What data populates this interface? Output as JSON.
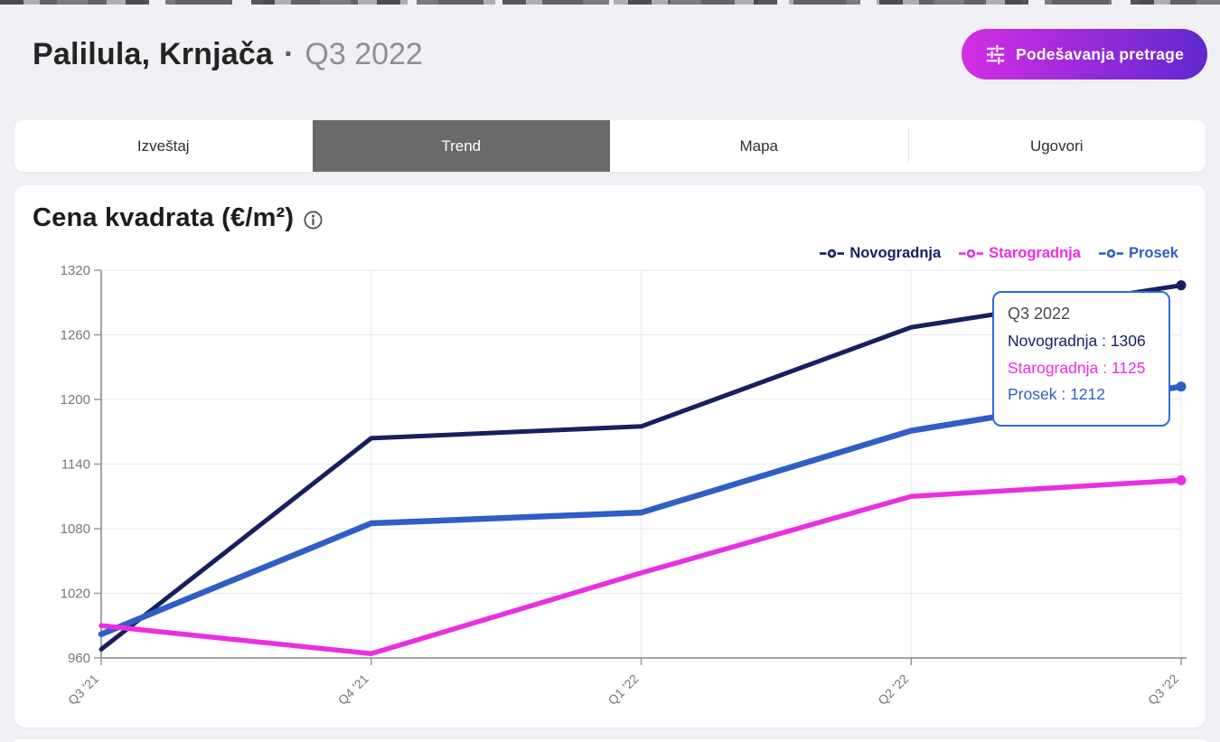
{
  "header": {
    "title": "Palilula, Krnjača",
    "separator": "·",
    "period": "Q3 2022",
    "settings_button": {
      "label": "Podešavanja pretrage",
      "icon": "sliders-icon",
      "gradient_from": "#d32ee4",
      "gradient_to": "#6028d0"
    }
  },
  "tabs": [
    {
      "label": "Izveštaj",
      "active": false
    },
    {
      "label": "Trend",
      "active": true
    },
    {
      "label": "Mapa",
      "active": false
    },
    {
      "label": "Ugovori",
      "active": false
    }
  ],
  "chart_card": {
    "title": "Cena kvadrata (€/m²)",
    "info_icon": "info-icon"
  },
  "chart_data": {
    "type": "line",
    "title": "Cena kvadrata (€/m²)",
    "categories": [
      "Q3 '21",
      "Q4 '21",
      "Q1 '22",
      "Q2 '22",
      "Q3 '22"
    ],
    "series": [
      {
        "name": "Novogradnja",
        "color": "#181e60",
        "values": [
          968,
          1164,
          1175,
          1267,
          1306
        ]
      },
      {
        "name": "Starogradnja",
        "color": "#e92fe1",
        "values": [
          990,
          964,
          1039,
          1110,
          1125
        ]
      },
      {
        "name": "Prosek",
        "color": "#2e5ec6",
        "values": [
          982,
          1085,
          1095,
          1171,
          1212
        ]
      }
    ],
    "ylim": [
      960,
      1320
    ],
    "yticks": [
      960,
      1020,
      1080,
      1140,
      1200,
      1260,
      1320
    ],
    "grid": true,
    "legend_position": "top-right",
    "axis_color": "#98989c",
    "grid_color": "#e8e8ea",
    "tick_label_color": "#76767a"
  },
  "tooltip": {
    "title": "Q3 2022",
    "separator": " : ",
    "border_color": "#2e6ae0",
    "rows": [
      {
        "label": "Novogradnja",
        "value": "1306",
        "color": "#181e60"
      },
      {
        "label": "Starogradnja",
        "value": "1125",
        "color": "#e92fe1"
      },
      {
        "label": "Prosek",
        "value": "1212",
        "color": "#2e5ec6"
      }
    ]
  }
}
